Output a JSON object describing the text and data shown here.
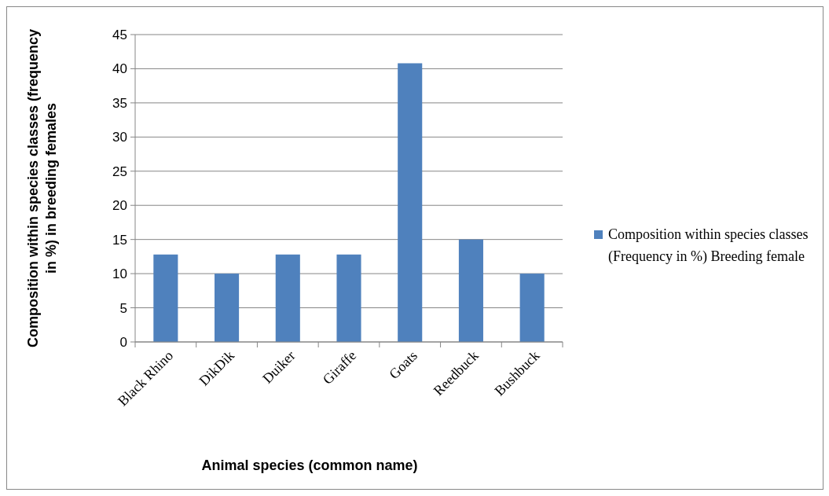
{
  "chart_data": {
    "type": "bar",
    "xlabel": "Animal species (common name)",
    "ylabel": "Composition within species classes (frequency in %) in breeding females",
    "categories": [
      "Black Rhino",
      "DikDik",
      "Duiker",
      "Giraffe",
      "Goats",
      "Reedbuck",
      "Bushbuck"
    ],
    "series": [
      {
        "name": "Composition within species classes (Frequency in %) Breeding female",
        "color": "#4f81bd",
        "values": [
          12.8,
          10,
          12.8,
          12.8,
          40.8,
          15,
          10
        ]
      }
    ],
    "ylim": [
      0,
      45
    ],
    "yticks": [
      0,
      5,
      10,
      15,
      20,
      25,
      30,
      35,
      40,
      45
    ],
    "grid": "y",
    "legend": "right"
  }
}
